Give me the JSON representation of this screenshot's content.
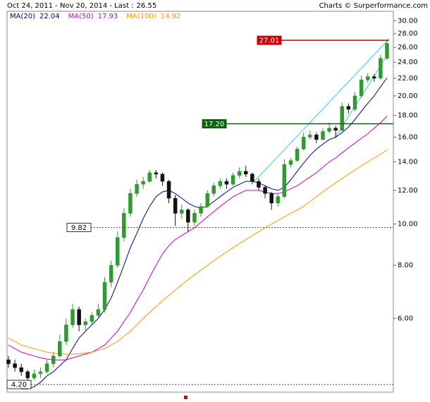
{
  "chart_data": {
    "type": "candlestick",
    "header": "Oct 24, 2011 - Nov 20, 2014 - Last :",
    "source": "Charts © Surperformance.com",
    "log_scale": true,
    "ylim": [
      4.03,
      31.6
    ],
    "yticks": [
      {
        "value": 30,
        "label": "30.00"
      },
      {
        "value": 28,
        "label": "28.00"
      },
      {
        "value": 26,
        "label": "26.00"
      },
      {
        "value": 24,
        "label": "24.00"
      },
      {
        "value": 22,
        "label": "22.00"
      },
      {
        "value": 20,
        "label": "20.00"
      },
      {
        "value": 18,
        "label": "18.00"
      },
      {
        "value": 16,
        "label": "16.00"
      },
      {
        "value": 14,
        "label": "14.00"
      },
      {
        "value": 12,
        "label": "12.00"
      },
      {
        "value": 10,
        "label": "10.00"
      },
      {
        "value": 8,
        "label": "8.00"
      },
      {
        "value": 6,
        "label": "6.00"
      }
    ],
    "up_color": "#2f9a2f",
    "down_color": "#111111",
    "open": [
      4.8,
      4.7,
      4.6,
      4.5,
      4.35,
      4.45,
      4.5,
      4.7,
      4.9,
      5.3,
      5.8,
      6.3,
      5.8,
      5.9,
      6.1,
      6.3,
      7.3,
      8.0,
      9.3,
      10.6,
      11.8,
      12.4,
      12.6,
      13.2,
      13.1,
      12.6,
      11.5,
      10.6,
      10.8,
      10.1,
      10.6,
      11.0,
      11.8,
      12.3,
      12.6,
      12.4,
      13.0,
      13.3,
      13.1,
      12.6,
      12.2,
      11.8,
      11.2,
      11.6,
      13.8,
      14.1,
      15.0,
      16.0,
      16.2,
      15.8,
      16.5,
      16.8,
      16.6,
      18.9,
      18.6,
      20.0,
      21.8,
      22.2,
      22.0,
      24.5
    ],
    "high": [
      4.9,
      4.8,
      4.7,
      4.55,
      4.55,
      4.6,
      4.8,
      5.0,
      5.5,
      6.0,
      6.5,
      6.4,
      6.0,
      6.2,
      6.5,
      7.5,
      8.2,
      9.6,
      10.9,
      12.1,
      12.7,
      12.9,
      13.4,
      13.4,
      13.2,
      12.7,
      11.7,
      11.1,
      10.9,
      10.8,
      11.2,
      12.0,
      12.5,
      12.8,
      12.8,
      13.2,
      13.6,
      13.7,
      13.2,
      12.8,
      12.3,
      11.9,
      11.8,
      14.2,
      14.3,
      15.2,
      16.4,
      16.6,
      16.4,
      16.8,
      17.3,
      17.0,
      19.3,
      19.2,
      20.4,
      22.3,
      22.6,
      22.5,
      25.0,
      27.01
    ],
    "low": [
      4.6,
      4.5,
      4.4,
      4.25,
      4.3,
      4.35,
      4.45,
      4.6,
      4.85,
      5.2,
      5.7,
      5.6,
      5.6,
      5.8,
      6.0,
      6.2,
      7.1,
      7.9,
      9.1,
      10.4,
      11.6,
      12.1,
      12.5,
      12.8,
      12.3,
      11.2,
      9.9,
      10.3,
      9.6,
      9.9,
      10.4,
      10.9,
      11.6,
      12.1,
      12.1,
      12.3,
      12.8,
      12.9,
      12.4,
      12.0,
      11.5,
      10.8,
      11.0,
      11.5,
      13.6,
      14.0,
      14.9,
      15.8,
      15.5,
      15.7,
      16.3,
      16.0,
      16.5,
      18.2,
      18.4,
      19.8,
      21.5,
      21.6,
      21.8,
      24.3
    ],
    "close": [
      4.7,
      4.6,
      4.5,
      4.35,
      4.45,
      4.5,
      4.7,
      4.9,
      5.3,
      5.8,
      6.3,
      5.8,
      5.9,
      6.1,
      6.3,
      7.3,
      8.0,
      9.3,
      10.6,
      11.8,
      12.4,
      12.6,
      13.2,
      13.1,
      12.6,
      11.5,
      10.6,
      10.8,
      10.1,
      10.6,
      11.0,
      11.8,
      12.3,
      12.6,
      12.4,
      13.0,
      13.3,
      13.1,
      12.6,
      12.2,
      11.8,
      11.2,
      11.6,
      13.8,
      14.1,
      15.0,
      16.0,
      16.2,
      15.8,
      16.5,
      16.8,
      16.6,
      18.9,
      18.6,
      20.0,
      21.8,
      22.2,
      22.0,
      24.5,
      26.55
    ],
    "series": [
      {
        "name": "MA(20)",
        "color": "#000099",
        "values": [
          4.2,
          4.15,
          4.1,
          4.1,
          4.15,
          4.25,
          4.4,
          4.5,
          4.65,
          4.8,
          5.1,
          5.4,
          5.6,
          5.8,
          6.0,
          6.3,
          6.7,
          7.3,
          8.0,
          8.8,
          9.5,
          10.3,
          11.0,
          11.6,
          11.9,
          12.0,
          11.8,
          11.5,
          11.2,
          11.0,
          10.9,
          11.0,
          11.3,
          11.6,
          11.9,
          12.2,
          12.4,
          12.6,
          12.6,
          12.5,
          12.3,
          12.1,
          12.0,
          12.2,
          12.7,
          13.3,
          13.9,
          14.5,
          15.0,
          15.4,
          15.8,
          16.0,
          16.4,
          16.9,
          17.6,
          18.4,
          19.2,
          20.0,
          21.0,
          22.04
        ]
      },
      {
        "name": "MA(50)",
        "color": "#cc00cc",
        "values": [
          5.2,
          5.1,
          5.0,
          4.95,
          4.9,
          4.85,
          4.82,
          4.8,
          4.8,
          4.8,
          4.85,
          4.9,
          4.95,
          5.0,
          5.1,
          5.2,
          5.4,
          5.6,
          5.9,
          6.2,
          6.6,
          7.0,
          7.5,
          8.0,
          8.5,
          8.9,
          9.2,
          9.4,
          9.6,
          9.8,
          10.1,
          10.4,
          10.7,
          11.0,
          11.3,
          11.6,
          11.8,
          12.0,
          12.0,
          12.0,
          11.9,
          11.8,
          11.8,
          11.9,
          12.1,
          12.3,
          12.6,
          12.9,
          13.2,
          13.6,
          14.0,
          14.3,
          14.7,
          15.1,
          15.5,
          15.9,
          16.3,
          16.8,
          17.3,
          17.93
        ]
      },
      {
        "name": "MA(100)",
        "color": "#ff9900",
        "values": [
          5.4,
          5.3,
          5.2,
          5.15,
          5.1,
          5.05,
          5.0,
          4.98,
          4.95,
          4.95,
          4.95,
          4.96,
          4.98,
          5.0,
          5.05,
          5.1,
          5.2,
          5.3,
          5.45,
          5.6,
          5.8,
          6.0,
          6.2,
          6.4,
          6.6,
          6.8,
          7.0,
          7.2,
          7.4,
          7.6,
          7.8,
          8.0,
          8.2,
          8.4,
          8.6,
          8.8,
          9.0,
          9.2,
          9.4,
          9.6,
          9.8,
          10.0,
          10.2,
          10.4,
          10.6,
          10.8,
          11.0,
          11.3,
          11.6,
          11.9,
          12.2,
          12.5,
          12.8,
          13.1,
          13.4,
          13.7,
          14.0,
          14.3,
          14.6,
          14.92
        ]
      }
    ],
    "levels": [
      {
        "value": 27.01,
        "color": "#cc0000",
        "style": "solid"
      },
      {
        "value": 17.2,
        "label": "17.20",
        "color": "#006600",
        "style": "solid"
      },
      {
        "value": 9.82,
        "color": "#333333",
        "style": "dashed"
      },
      {
        "value": 4.2,
        "label": "4.20",
        "color": "#333333",
        "style": "dashed"
      }
    ]
  }
}
